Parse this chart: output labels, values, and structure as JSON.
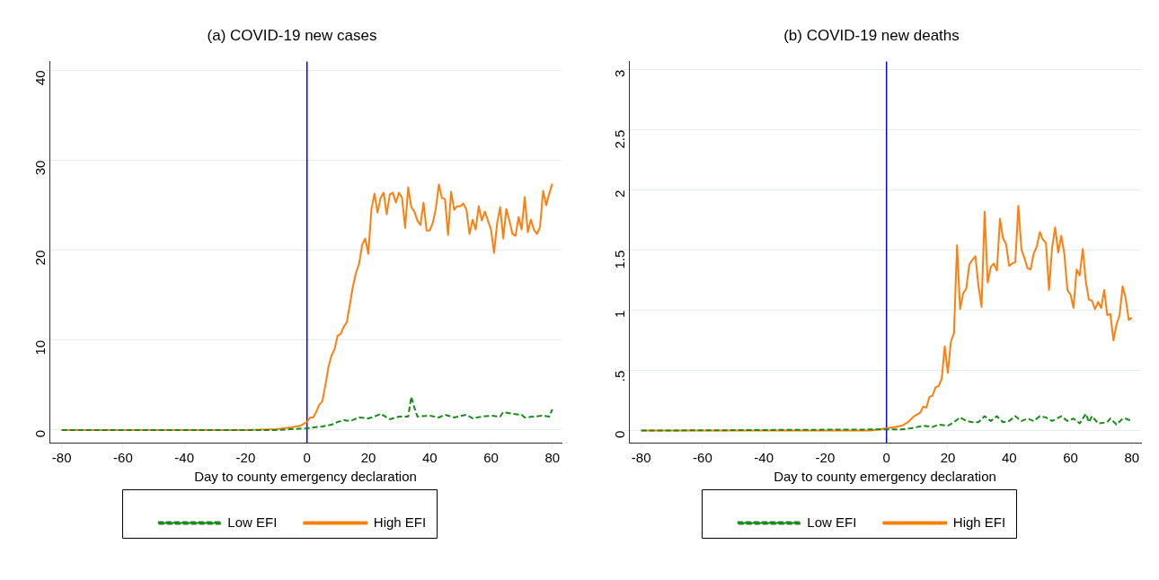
{
  "chart_data": [
    {
      "type": "line",
      "title": "(a) COVID-19 new cases",
      "xlabel": "Day to county emergency declaration",
      "xlim": [
        -84,
        83
      ],
      "xticks": [
        -80,
        -60,
        -40,
        -20,
        0,
        20,
        40,
        60,
        80
      ],
      "ylim": [
        -1.4,
        41
      ],
      "yticks": [
        0,
        10,
        20,
        30,
        40
      ],
      "grid": "y",
      "legend": "bottom",
      "marker": "none",
      "ref_lines": [
        {
          "axis": "x",
          "value": 0,
          "color": "#0000ff"
        }
      ],
      "series": [
        {
          "name": "Low EFI",
          "color": "#1a8a1a",
          "line_style": "dashed",
          "x": [
            -80,
            -10,
            0,
            5,
            8,
            10,
            12,
            14,
            17,
            20,
            22,
            24,
            27,
            30,
            33,
            34,
            35,
            36,
            40,
            43,
            45,
            48,
            52,
            54,
            57,
            60,
            63,
            64,
            67,
            70,
            71,
            74,
            77,
            79,
            80
          ],
          "values": [
            0,
            0,
            0.2,
            0.4,
            0.6,
            0.9,
            1.1,
            1.0,
            1.4,
            1.3,
            1.5,
            1.8,
            1.2,
            1.5,
            1.5,
            3.7,
            2.5,
            1.5,
            1.6,
            1.4,
            1.7,
            1.4,
            1.7,
            1.3,
            1.5,
            1.6,
            1.5,
            2.0,
            1.8,
            1.7,
            1.4,
            1.5,
            1.6,
            1.5,
            2.3
          ]
        },
        {
          "name": "High EFI",
          "color": "#ff7f0e",
          "line_style": "solid",
          "x": [
            -80,
            -20,
            -10,
            -5,
            -2,
            0,
            1,
            2,
            3,
            4,
            5,
            6,
            7,
            8,
            9,
            10,
            11,
            12,
            13,
            14,
            15,
            16,
            17,
            18,
            19,
            20,
            21,
            22,
            23,
            24,
            25,
            26,
            27,
            28,
            29,
            30,
            31,
            32,
            33,
            34,
            35,
            36,
            37,
            38,
            39,
            40,
            41,
            42,
            43,
            44,
            45,
            46,
            47,
            48,
            49,
            50,
            51,
            52,
            53,
            54,
            55,
            56,
            57,
            58,
            59,
            60,
            61,
            62,
            63,
            64,
            65,
            66,
            67,
            68,
            69,
            70,
            71,
            72,
            73,
            74,
            75,
            76,
            77,
            78,
            79,
            80
          ],
          "values": [
            0,
            0,
            0.1,
            0.3,
            0.5,
            0.9,
            1.4,
            1.4,
            2,
            2.8,
            3.2,
            5,
            7,
            8.3,
            9,
            10.5,
            10.7,
            11.5,
            12,
            14,
            16,
            17.5,
            18.5,
            20.6,
            21.3,
            19.6,
            24.5,
            26.3,
            24.2,
            25.8,
            26.4,
            24,
            26.2,
            26.4,
            25.3,
            26.4,
            25.8,
            22.5,
            27,
            24.8,
            24.3,
            23.3,
            22.8,
            25.3,
            22.2,
            22.2,
            23,
            24.6,
            27.3,
            25.8,
            25.7,
            21.7,
            26.5,
            24.5,
            24.9,
            24.9,
            25.2,
            24.5,
            21.8,
            23.4,
            22.3,
            24.9,
            23.3,
            24.3,
            23.3,
            22.3,
            19.7,
            23,
            24.8,
            21.3,
            24.6,
            23.3,
            21.8,
            21.6,
            23.7,
            22.3,
            25.9,
            22,
            23.4,
            22.3,
            21.8,
            22.6,
            26.6,
            25,
            26.3,
            27.4
          ]
        }
      ]
    },
    {
      "type": "line",
      "title": "(b) COVID-19 new deaths",
      "xlabel": "Day to county emergency declaration",
      "xlim": [
        -84,
        83
      ],
      "xticks": [
        -80,
        -60,
        -40,
        -20,
        0,
        20,
        40,
        60,
        80
      ],
      "ylim": [
        -0.1,
        3.07
      ],
      "yticks": [
        0,
        {
          "value": 0.5,
          "label": ".5"
        },
        1,
        1.5,
        2,
        2.5,
        3
      ],
      "grid": "y",
      "legend": "bottom",
      "marker": "none",
      "ref_lines": [
        {
          "axis": "x",
          "value": 0,
          "color": "#0000ff"
        }
      ],
      "series": [
        {
          "name": "Low EFI",
          "color": "#1a8a1a",
          "line_style": "dashed",
          "x": [
            -80,
            0,
            5,
            8,
            12,
            15,
            17,
            20,
            22,
            24,
            26,
            28,
            30,
            32,
            34,
            36,
            38,
            40,
            42,
            44,
            46,
            48,
            50,
            52,
            54,
            57,
            59,
            61,
            63,
            65,
            66,
            67,
            69,
            72,
            73,
            75,
            77,
            78,
            80
          ],
          "values": [
            0,
            0.01,
            0.01,
            0.02,
            0.04,
            0.03,
            0.05,
            0.04,
            0.07,
            0.11,
            0.08,
            0.07,
            0.07,
            0.12,
            0.08,
            0.12,
            0.07,
            0.08,
            0.12,
            0.08,
            0.1,
            0.08,
            0.12,
            0.11,
            0.08,
            0.12,
            0.08,
            0.1,
            0.06,
            0.14,
            0.07,
            0.12,
            0.06,
            0.07,
            0.1,
            0.05,
            0.1,
            0.1,
            0.08
          ]
        },
        {
          "name": "High EFI",
          "color": "#ff7f0e",
          "line_style": "solid",
          "x": [
            -80,
            -5,
            0,
            3,
            5,
            7,
            9,
            11,
            12,
            13,
            14,
            15,
            16,
            17,
            18,
            19,
            20,
            21,
            22,
            23,
            24,
            25,
            26,
            27,
            28,
            29,
            30,
            31,
            32,
            33,
            34,
            35,
            36,
            37,
            38,
            39,
            40,
            41,
            42,
            43,
            44,
            45,
            46,
            47,
            48,
            49,
            50,
            51,
            52,
            53,
            54,
            55,
            56,
            57,
            58,
            59,
            60,
            61,
            62,
            63,
            64,
            65,
            66,
            67,
            68,
            69,
            70,
            71,
            72,
            73,
            74,
            75,
            76,
            77,
            78,
            79,
            80
          ],
          "values": [
            0,
            0,
            0.02,
            0.03,
            0.04,
            0.07,
            0.12,
            0.15,
            0.2,
            0.19,
            0.28,
            0.29,
            0.36,
            0.37,
            0.43,
            0.7,
            0.48,
            0.74,
            0.81,
            1.54,
            1.01,
            1.14,
            1.18,
            1.38,
            1.42,
            1.45,
            1.2,
            1.03,
            1.82,
            1.23,
            1.36,
            1.39,
            1.33,
            1.76,
            1.6,
            1.55,
            1.37,
            1.39,
            1.4,
            1.87,
            1.51,
            1.43,
            1.35,
            1.34,
            1.47,
            1.53,
            1.65,
            1.59,
            1.56,
            1.17,
            1.52,
            1.69,
            1.48,
            1.62,
            1.47,
            1.17,
            1.13,
            1.02,
            1.34,
            1.29,
            1.51,
            1.24,
            1.09,
            1.08,
            1.01,
            1.07,
            1.02,
            1.17,
            0.96,
            0.97,
            0.75,
            0.88,
            0.96,
            1.2,
            1.1,
            0.92,
            0.94
          ]
        }
      ]
    }
  ]
}
